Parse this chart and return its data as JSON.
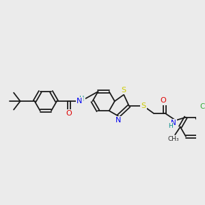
{
  "bg_color": "#ebebeb",
  "bond_color": "#1a1a1a",
  "bond_lw": 1.3,
  "atom_colors": {
    "N": "#0000ee",
    "O": "#dd0000",
    "S": "#cccc00",
    "Cl": "#33aa33",
    "NH": "#008888",
    "H": "#008888",
    "C": "#1a1a1a"
  },
  "font_size": 7.5
}
